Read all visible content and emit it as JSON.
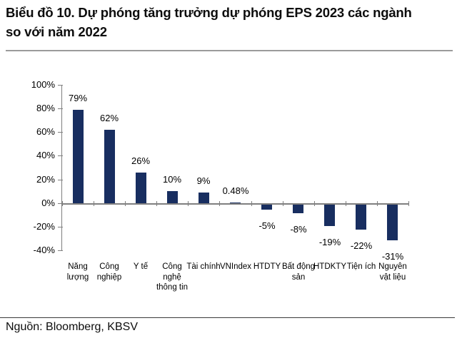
{
  "header": {
    "title_line1": "Biểu đồ 10. Dự phóng tăng trưởng dự phóng EPS 2023 các ngành",
    "title_line2": "so với năm 2022"
  },
  "footer": {
    "source": "Nguồn: Bloomberg, KBSV"
  },
  "colors": {
    "bar": "#182e60",
    "axis": "#7f7f7f",
    "title_rule": "#9b9b9b",
    "footer_rule": "#3a3a3a"
  },
  "chart_data": {
    "type": "bar",
    "title": "Dự phóng tăng trưởng dự phóng EPS 2023 các ngành so với năm 2022",
    "categories": [
      "Năng lượng",
      "Công nghiệp",
      "Y tế",
      "Công nghệ thông tin",
      "Tài chính",
      "VNIndex",
      "HTDTY",
      "Bất động sản",
      "HTDKTY",
      "Tiện ích",
      "Nguyên vật liệu"
    ],
    "values": [
      79,
      62,
      26,
      10,
      9,
      0.48,
      -5,
      -8,
      -19,
      -22,
      -31
    ],
    "data_labels": [
      "79%",
      "62%",
      "26%",
      "10%",
      "9%",
      "0.48%",
      "-5%",
      "-8%",
      "-19%",
      "-22%",
      "-31%"
    ],
    "xlabel": "",
    "ylabel": "",
    "ylim": [
      -40,
      100
    ],
    "ytick_step": 20,
    "ytick_labels": [
      "100%",
      "80%",
      "60%",
      "40%",
      "20%",
      "0%",
      "-20%",
      "-40%"
    ],
    "grid": false,
    "legend": false,
    "bar_color": "#182e60"
  }
}
